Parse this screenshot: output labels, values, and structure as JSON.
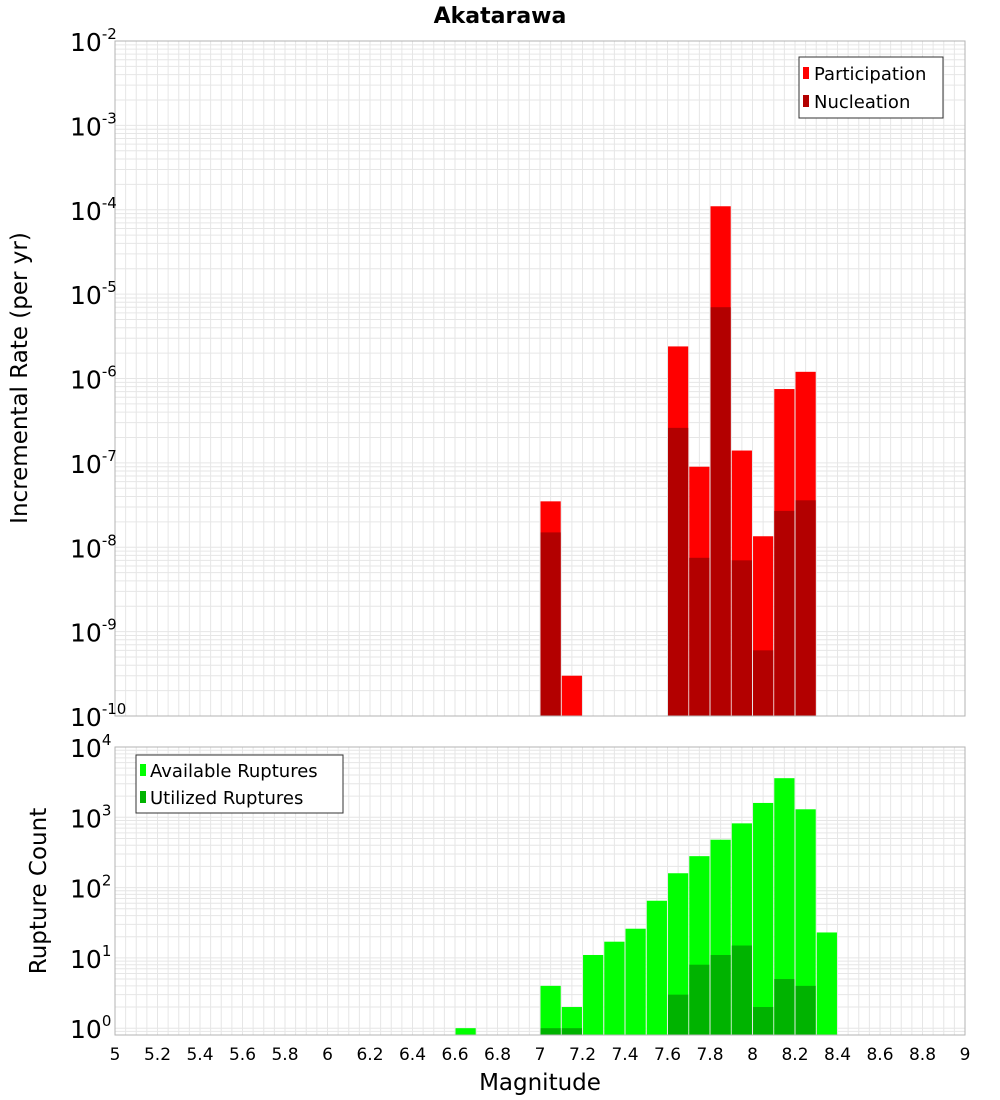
{
  "title": "Akatarawa",
  "xlabel": "Magnitude",
  "xticks": [
    "5",
    "5.2",
    "5.4",
    "5.6",
    "5.8",
    "6",
    "6.2",
    "6.4",
    "6.6",
    "6.8",
    "7",
    "7.2",
    "7.4",
    "7.6",
    "7.8",
    "8",
    "8.2",
    "8.4",
    "8.6",
    "8.8",
    "9"
  ],
  "colors": {
    "participation": "#ff0000",
    "nucleation": "#b30000",
    "available": "#00ff00",
    "utilized": "#00b300",
    "grid": "#e6e6e6",
    "frame": "#b3b3b3"
  },
  "chart_data": [
    {
      "type": "bar",
      "title": "Akatarawa",
      "ylabel": "Incremental Rate (per yr)",
      "xlabel": "",
      "yscale": "log",
      "xlim": [
        5,
        9
      ],
      "ylim": [
        1e-10,
        0.01
      ],
      "ytick_exponents": [
        -2,
        -3,
        -4,
        -5,
        -6,
        -7,
        -8,
        -9,
        -10
      ],
      "legend_position": "top-right",
      "grid": true,
      "series": [
        {
          "name": "Participation",
          "x": [
            7.05,
            7.15,
            7.65,
            7.75,
            7.85,
            7.95,
            8.05,
            8.15,
            8.25
          ],
          "values": [
            3.5e-08,
            3e-10,
            2.4e-06,
            9e-08,
            0.00011,
            1.4e-07,
            1.35e-08,
            7.5e-07,
            1.2e-06
          ]
        },
        {
          "name": "Nucleation",
          "x": [
            7.05,
            7.65,
            7.75,
            7.85,
            7.95,
            8.05,
            8.15,
            8.25
          ],
          "values": [
            1.5e-08,
            2.6e-07,
            7.5e-09,
            7e-06,
            7e-09,
            6e-10,
            2.7e-08,
            3.6e-08
          ]
        }
      ]
    },
    {
      "type": "bar",
      "ylabel": "Rupture Count",
      "xlabel": "Magnitude",
      "yscale": "log",
      "xlim": [
        5,
        9
      ],
      "ylim": [
        0.8,
        10000
      ],
      "ytick_exponents": [
        4,
        3,
        2,
        1,
        0
      ],
      "legend_position": "top-left",
      "grid": true,
      "series": [
        {
          "name": "Available Ruptures",
          "x": [
            6.65,
            7.05,
            7.15,
            7.25,
            7.35,
            7.45,
            7.55,
            7.65,
            7.75,
            7.85,
            7.95,
            8.05,
            8.15,
            8.25,
            8.35
          ],
          "values": [
            1,
            4,
            2,
            11,
            17,
            26,
            65,
            160,
            280,
            480,
            820,
            1600,
            3600,
            1300,
            23
          ]
        },
        {
          "name": "Utilized Ruptures",
          "x": [
            7.05,
            7.15,
            7.65,
            7.75,
            7.85,
            7.95,
            8.05,
            8.15,
            8.25
          ],
          "values": [
            1,
            1,
            3,
            8,
            11,
            15,
            2,
            5,
            4
          ]
        }
      ]
    }
  ]
}
